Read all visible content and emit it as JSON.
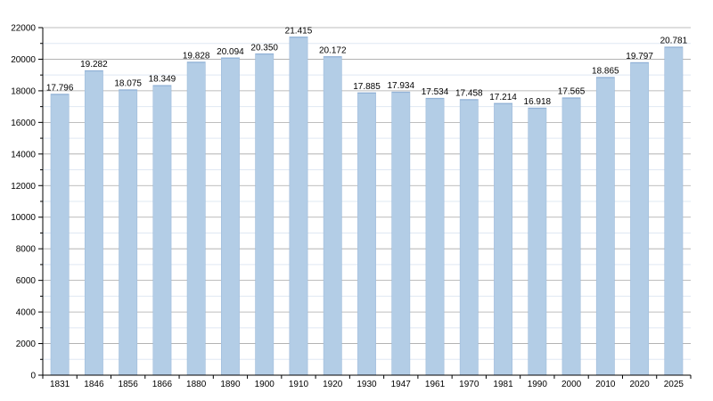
{
  "chart_data": {
    "type": "bar",
    "title": "",
    "xlabel": "",
    "ylabel": "",
    "ylim": [
      0,
      22000
    ],
    "ytick_step": 2000,
    "grid": true,
    "legend": "none",
    "bar_color": "#b3cde6",
    "bar_edge_color": "#9fbcdb",
    "grid_major_color": "#a8a8a8",
    "grid_minor_color": "#dfe8f3",
    "categories": [
      "1831",
      "1846",
      "1856",
      "1866",
      "1880",
      "1890",
      "1900",
      "1910",
      "1920",
      "1930",
      "1947",
      "1961",
      "1970",
      "1981",
      "1990",
      "2000",
      "2010",
      "2020",
      "2025"
    ],
    "values": [
      17796,
      19282,
      18075,
      18349,
      19828,
      20094,
      20350,
      21415,
      20172,
      17885,
      17934,
      17534,
      17458,
      17214,
      16918,
      17565,
      18865,
      19797,
      20781
    ],
    "value_labels": [
      "17.796",
      "19.282",
      "18.075",
      "18.349",
      "19.828",
      "20.094",
      "20.350",
      "21.415",
      "20.172",
      "17.885",
      "17.934",
      "17.534",
      "17.458",
      "17.214",
      "16.918",
      "17.565",
      "18.865",
      "19.797",
      "20.781"
    ],
    "ytick_labels": [
      "0",
      "2000",
      "4000",
      "6000",
      "8000",
      "10000",
      "12000",
      "14000",
      "16000",
      "18000",
      "20000",
      "22000"
    ]
  }
}
